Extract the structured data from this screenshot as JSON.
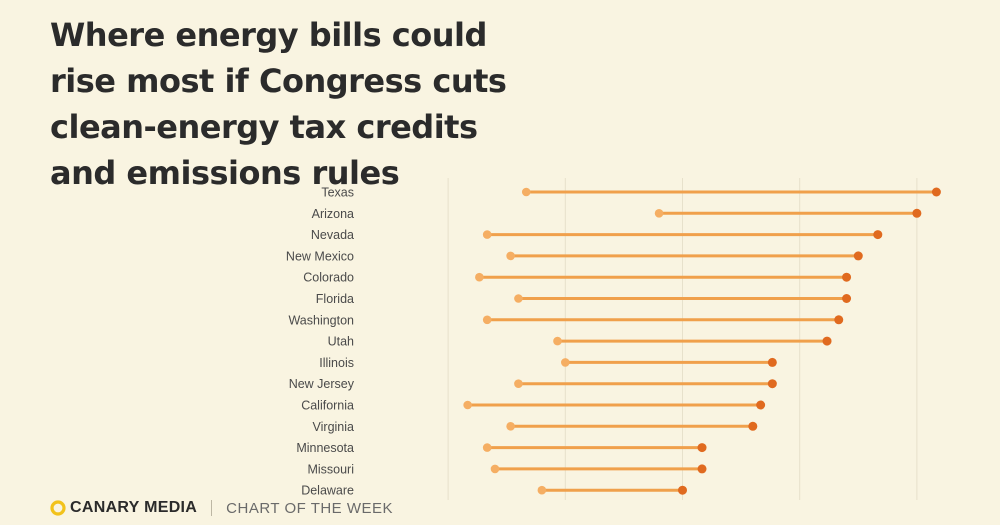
{
  "title": "Where energy bills could rise most if Congress cuts clean-energy tax credits and emissions rules",
  "footer": {
    "brand": "CANARY MEDIA",
    "tagline": "CHART OF THE WEEK"
  },
  "colors": {
    "background": "#f9f4e1",
    "line": "#f0a04b",
    "start_dot": "#f5ae63",
    "end_dot": "#e06a1f",
    "grid": "#e7e1cb",
    "label": "#4a4a4a",
    "logo": "#f2c21b"
  },
  "chart_data": {
    "type": "dumbbell",
    "title": "Where energy bills could rise most if Congress cuts clean-energy tax credits and emissions rules",
    "categories": [
      "Texas",
      "Arizona",
      "Nevada",
      "New Mexico",
      "Colorado",
      "Florida",
      "Washington",
      "Utah",
      "Illinois",
      "New Jersey",
      "California",
      "Virginia",
      "Minnesota",
      "Missouri",
      "Delaware"
    ],
    "series": [
      {
        "values": [
          11.0,
          14.4,
          10.0,
          10.6,
          9.8,
          10.8,
          10.0,
          11.8,
          12.0,
          10.8,
          9.5,
          10.6,
          10.0,
          10.2,
          11.4
        ]
      },
      {
        "values": [
          21.5,
          21.0,
          20.0,
          19.5,
          19.2,
          19.2,
          19.0,
          18.7,
          17.3,
          17.3,
          17.0,
          16.8,
          15.5,
          15.5,
          15.0
        ]
      }
    ],
    "xlim": [
      7,
      23
    ],
    "grid": true,
    "legend": "none"
  }
}
